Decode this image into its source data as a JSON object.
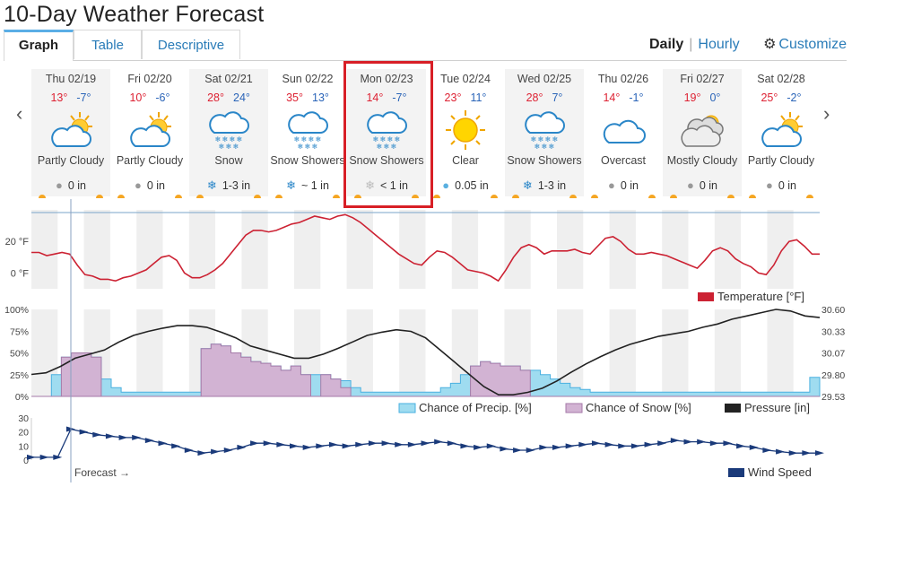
{
  "title": "10-Day Weather Forecast",
  "tabs": [
    "Graph",
    "Table",
    "Descriptive"
  ],
  "view_links": {
    "daily": "Daily",
    "separator": "|",
    "hourly": "Hourly",
    "customize": "Customize"
  },
  "icons": {
    "prev": "chevron-left-icon",
    "next": "chevron-right-icon",
    "gear": "gear-icon"
  },
  "colors": {
    "hi": "#dd2222",
    "lo": "#2a64b8",
    "accent": "#2a7cb8",
    "highlight": "#d81f26",
    "temperature": "#cc2233",
    "precip": "#9fdcf0",
    "snow": "#d2b3d3",
    "pressure": "#222222",
    "wind": "#1a3a7a"
  },
  "days": [
    {
      "name": "Thu 02/19",
      "hi": "13°",
      "lo": "-7°",
      "icon": "partly-cloudy-icon",
      "cond": "Partly Cloudy",
      "precip_icon": "rain-icon",
      "precip": "0 in"
    },
    {
      "name": "Fri 02/20",
      "hi": "10°",
      "lo": "-6°",
      "icon": "partly-cloudy-icon",
      "cond": "Partly Cloudy",
      "precip_icon": "rain-icon",
      "precip": "0 in"
    },
    {
      "name": "Sat 02/21",
      "hi": "28°",
      "lo": "24°",
      "icon": "snow-icon",
      "cond": "Snow",
      "precip_icon": "snowflake-icon",
      "precip": "1-3 in"
    },
    {
      "name": "Sun 02/22",
      "hi": "35°",
      "lo": "13°",
      "icon": "snow-icon",
      "cond": "Snow Showers",
      "precip_icon": "snowflake-icon",
      "precip": "~ 1 in"
    },
    {
      "name": "Mon 02/23",
      "hi": "14°",
      "lo": "-7°",
      "icon": "snow-icon",
      "cond": "Snow Showers",
      "precip_icon": "snowflake-icon",
      "precip": "< 1 in"
    },
    {
      "name": "Tue 02/24",
      "hi": "23°",
      "lo": "11°",
      "icon": "sun-icon",
      "cond": "Clear",
      "precip_icon": "rain-icon",
      "precip": "0.05 in"
    },
    {
      "name": "Wed 02/25",
      "hi": "28°",
      "lo": "7°",
      "icon": "snow-icon",
      "cond": "Snow Showers",
      "precip_icon": "snowflake-icon",
      "precip": "1-3 in"
    },
    {
      "name": "Thu 02/26",
      "hi": "14°",
      "lo": "-1°",
      "icon": "cloud-icon",
      "cond": "Overcast",
      "precip_icon": "rain-icon",
      "precip": "0 in"
    },
    {
      "name": "Fri 02/27",
      "hi": "19°",
      "lo": "0°",
      "icon": "mostly-cloudy-icon",
      "cond": "Mostly Cloudy",
      "precip_icon": "rain-icon",
      "precip": "0 in"
    },
    {
      "name": "Sat 02/28",
      "hi": "25°",
      "lo": "-2°",
      "icon": "partly-cloudy-icon",
      "cond": "Partly Cloudy",
      "precip_icon": "rain-icon",
      "precip": "0 in"
    }
  ],
  "chart_data": [
    {
      "type": "line",
      "title": "",
      "series": [
        {
          "name": "Temperature [°F]",
          "values": [
            13,
            13,
            11,
            12,
            13,
            12,
            5,
            -1,
            -2,
            -4,
            -4,
            -5,
            -3,
            -2,
            0,
            2,
            6,
            10,
            11,
            8,
            0,
            -3,
            -3,
            -1,
            2,
            6,
            12,
            18,
            24,
            27,
            27,
            26,
            27,
            29,
            31,
            32,
            34,
            36,
            35,
            34,
            36,
            37,
            35,
            32,
            28,
            24,
            20,
            16,
            12,
            9,
            6,
            5,
            10,
            14,
            13,
            10,
            6,
            2,
            1,
            0,
            -2,
            -5,
            2,
            10,
            16,
            18,
            16,
            12,
            14,
            14,
            14,
            15,
            13,
            12,
            17,
            22,
            23,
            20,
            15,
            12,
            12,
            13,
            12,
            11,
            9,
            7,
            5,
            3,
            8,
            14,
            16,
            14,
            9,
            6,
            4,
            0,
            -1,
            5,
            14,
            20,
            21,
            17,
            12,
            12
          ]
        }
      ],
      "yticks": [
        "20 °F",
        "0 °F"
      ],
      "ylim": [
        -10,
        40
      ]
    },
    {
      "type": "area",
      "y_left_ticks": [
        "100%",
        "75%",
        "50%",
        "25%",
        "0%"
      ],
      "y_right_ticks": [
        "30.60",
        "30.33",
        "30.07",
        "29.80",
        "29.53"
      ],
      "series": [
        {
          "name": "Chance of Precip. [%]",
          "values": [
            0,
            0,
            25,
            45,
            50,
            50,
            45,
            20,
            10,
            5,
            5,
            5,
            5,
            5,
            5,
            5,
            5,
            55,
            60,
            58,
            50,
            45,
            40,
            38,
            35,
            30,
            35,
            25,
            25,
            25,
            20,
            18,
            10,
            5,
            5,
            5,
            5,
            5,
            5,
            5,
            5,
            10,
            15,
            25,
            35,
            40,
            38,
            35,
            35,
            30,
            30,
            25,
            20,
            15,
            10,
            8,
            5,
            5,
            5,
            5,
            5,
            5,
            5,
            5,
            5,
            5,
            5,
            5,
            5,
            5,
            5,
            5,
            5,
            5,
            5,
            5,
            5,
            5,
            22
          ]
        },
        {
          "name": "Chance of Snow [%]",
          "values": [
            0,
            0,
            0,
            45,
            50,
            50,
            45,
            0,
            0,
            0,
            0,
            0,
            0,
            0,
            0,
            0,
            0,
            55,
            60,
            58,
            50,
            45,
            40,
            38,
            35,
            30,
            35,
            25,
            0,
            25,
            20,
            10,
            0,
            0,
            0,
            0,
            0,
            0,
            0,
            0,
            0,
            0,
            0,
            0,
            35,
            40,
            38,
            35,
            35,
            30,
            0,
            0,
            0,
            0,
            0,
            0,
            0,
            0,
            0,
            0,
            0,
            0,
            0,
            0,
            0,
            0,
            0,
            0,
            0,
            0,
            0,
            0,
            0,
            0,
            0,
            0,
            0,
            0,
            0
          ]
        },
        {
          "name": "Pressure [in]",
          "values": [
            29.8,
            29.82,
            29.9,
            30.0,
            30.05,
            30.1,
            30.2,
            30.28,
            30.33,
            30.37,
            30.4,
            30.4,
            30.38,
            30.32,
            30.25,
            30.15,
            30.1,
            30.05,
            30.0,
            30.0,
            30.05,
            30.12,
            30.2,
            30.28,
            30.32,
            30.35,
            30.33,
            30.25,
            30.1,
            29.95,
            29.8,
            29.65,
            29.55,
            29.55,
            29.58,
            29.63,
            29.72,
            29.83,
            29.93,
            30.02,
            30.1,
            30.17,
            30.22,
            30.27,
            30.3,
            30.33,
            30.38,
            30.42,
            30.48,
            30.52,
            30.56,
            30.6,
            30.58,
            30.52,
            30.5
          ]
        }
      ]
    },
    {
      "type": "line",
      "series": [
        {
          "name": "Wind Speed",
          "values": [
            2,
            2,
            2,
            22,
            20,
            18,
            17,
            16,
            16,
            14,
            12,
            10,
            7,
            5,
            6,
            7,
            9,
            12,
            12,
            11,
            10,
            9,
            10,
            11,
            10,
            11,
            12,
            12,
            11,
            11,
            12,
            13,
            12,
            10,
            9,
            10,
            8,
            7,
            7,
            9,
            9,
            10,
            11,
            12,
            11,
            10,
            10,
            11,
            12,
            14,
            13,
            13,
            12,
            12,
            10,
            9,
            7,
            6,
            5,
            5,
            5
          ]
        }
      ],
      "yticks": [
        "30",
        "20",
        "10",
        "0"
      ],
      "ylim": [
        0,
        30
      ]
    }
  ],
  "forecast_label": "Forecast →",
  "legend": {
    "temperature": "Temperature [°F]",
    "precip": "Chance of Precip. [%]",
    "snow": "Chance of Snow [%]",
    "pressure": "Pressure [in]",
    "wind": "Wind Speed"
  }
}
